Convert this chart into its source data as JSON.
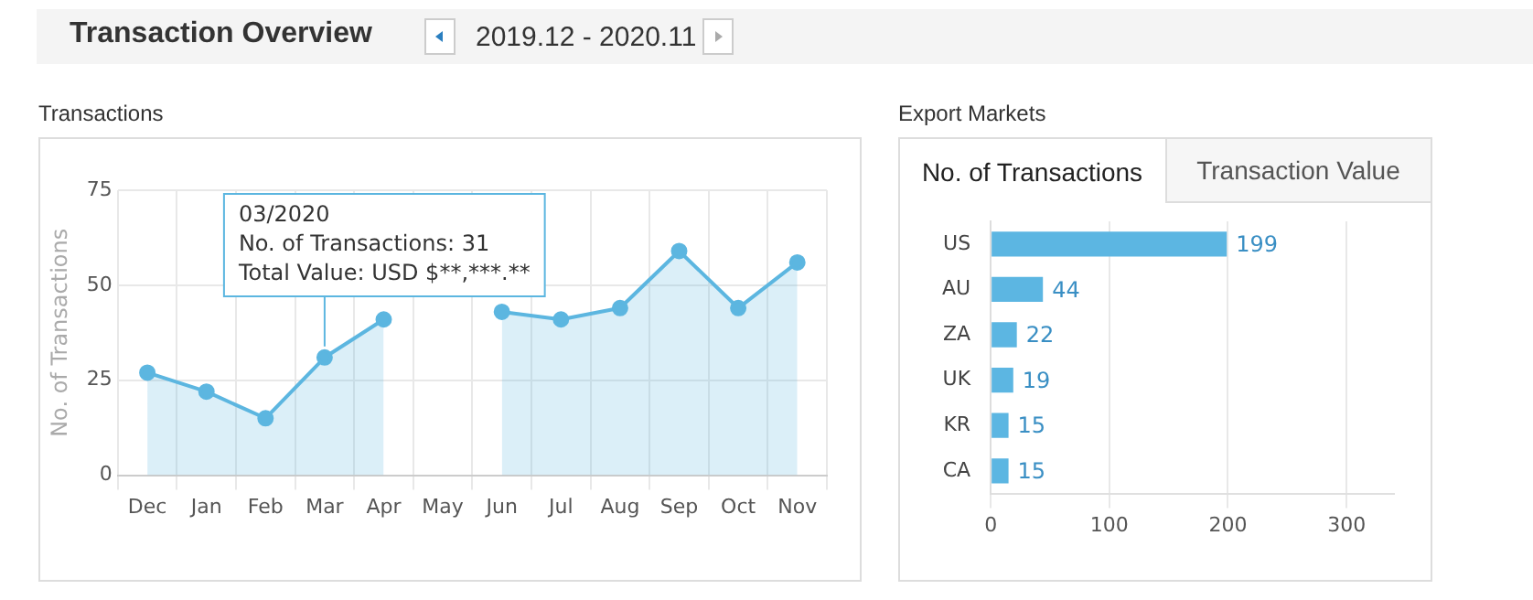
{
  "chart_data": [
    {
      "type": "other",
      "title": "Transaction Overview",
      "annotations": [
        "2019.12 - 2020.11"
      ]
    },
    {
      "type": "area",
      "title": "Transactions",
      "ylabel": "No. of Transactions",
      "categories": [
        "Dec",
        "Jan",
        "Feb",
        "Mar",
        "Apr",
        "May",
        "Jun",
        "Jul",
        "Aug",
        "Sep",
        "Oct",
        "Nov"
      ],
      "series": [
        {
          "color": "#5cb6e0",
          "values": [
            27,
            22,
            15,
            31,
            41,
            null,
            43,
            41,
            44,
            59,
            44,
            56
          ]
        }
      ],
      "ylim": [
        0,
        75
      ],
      "yticks": [
        0,
        25,
        50,
        75
      ],
      "grid": true,
      "marker": "circle",
      "annotations": [
        {
          "text": "03/2020\nNo. of Transactions: 31\nTotal Value: USD $**,***.**",
          "x": "Mar",
          "y": 31
        }
      ]
    },
    {
      "type": "bar",
      "title": "Export Markets",
      "orientation": "horizontal",
      "categories": [
        "US",
        "AU",
        "ZA",
        "UK",
        "KR",
        "CA"
      ],
      "values": [
        199,
        44,
        22,
        19,
        15,
        15
      ],
      "color": "#5cb6e2",
      "xlim": [
        0,
        340
      ],
      "xticks": [
        0,
        100,
        200,
        300
      ],
      "grid": "x",
      "data_labels": true,
      "annotations": [
        "No. of Transactions",
        "Transaction Value"
      ]
    }
  ]
}
